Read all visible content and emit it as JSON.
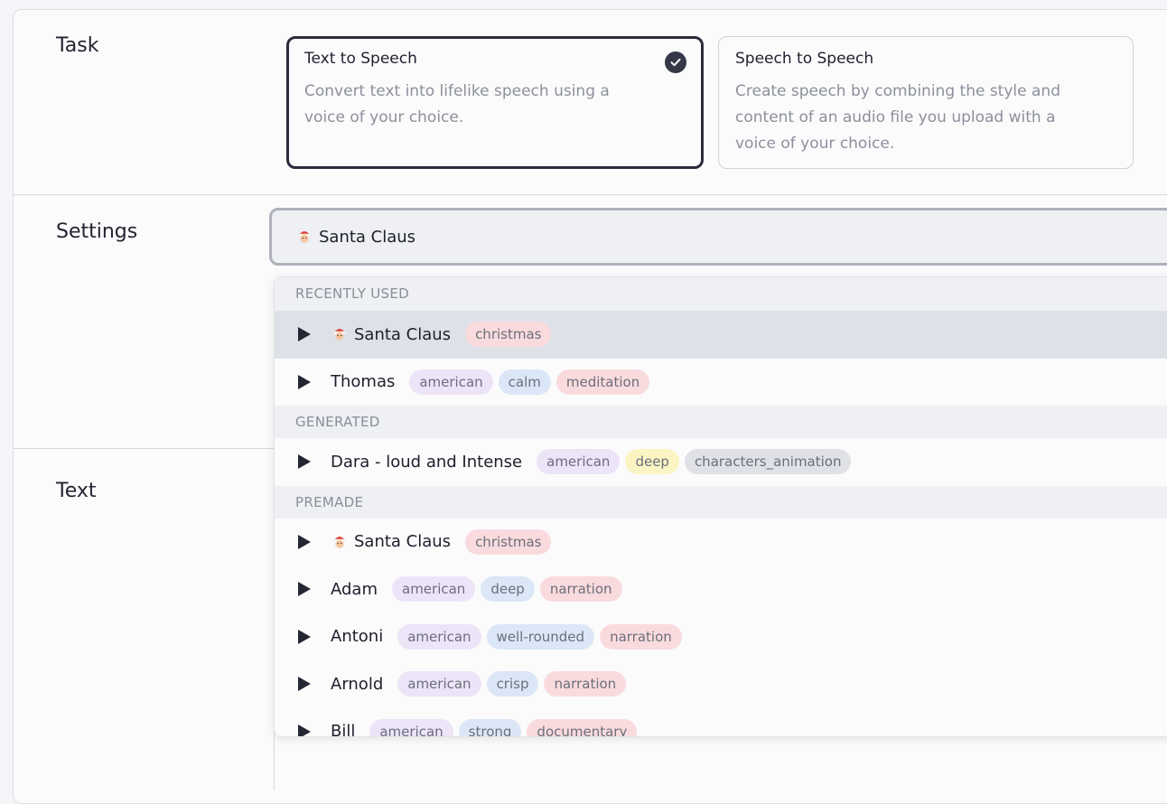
{
  "task": {
    "label": "Task",
    "options": [
      {
        "title": "Text to Speech",
        "description": "Convert text into lifelike speech using a voice of your choice.",
        "selected": true
      },
      {
        "title": "Speech to Speech",
        "description": "Create speech by combining the style and content of an audio file you upload with a voice of your choice.",
        "selected": false
      }
    ]
  },
  "settings": {
    "label": "Settings",
    "search_value": "Santa Claus"
  },
  "text_section": {
    "label": "Text"
  },
  "dropdown": {
    "groups": [
      {
        "header": "RECENTLY USED",
        "items": [
          {
            "name": "Santa Claus",
            "emoji": true,
            "highlighted": true,
            "tags": [
              "christmas"
            ]
          },
          {
            "name": "Thomas",
            "tags": [
              "american",
              "calm",
              "meditation"
            ]
          }
        ]
      },
      {
        "header": "GENERATED",
        "items": [
          {
            "name": "Dara - loud and Intense",
            "tags": [
              "american",
              "deep",
              "characters_animation"
            ]
          }
        ]
      },
      {
        "header": "PREMADE",
        "items": [
          {
            "name": "Santa Claus",
            "emoji": true,
            "tags": [
              "christmas"
            ]
          },
          {
            "name": "Adam",
            "tags": [
              "american",
              "deep",
              "narration"
            ]
          },
          {
            "name": "Antoni",
            "tags": [
              "american",
              "well-rounded",
              "narration"
            ]
          },
          {
            "name": "Arnold",
            "tags": [
              "american",
              "crisp",
              "narration"
            ]
          },
          {
            "name": "Bill",
            "tags": [
              "american",
              "strong",
              "documentary"
            ]
          }
        ]
      }
    ]
  }
}
